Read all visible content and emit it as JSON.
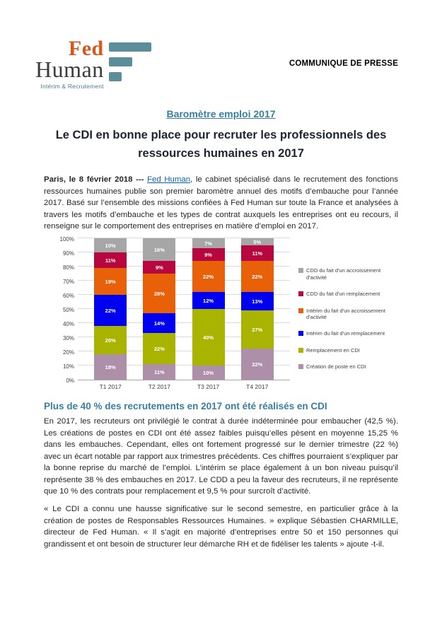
{
  "colors": {
    "accent_teal": "#36809e",
    "link_blue": "#0563c1",
    "logo_orange": "#d9571c",
    "logo_dark": "#3b3b3b",
    "logo_teal": "#5b8e99"
  },
  "header": {
    "logo": {
      "line1": "Fed",
      "line2": "Human",
      "tagline": "Intérim & Recrutement"
    },
    "press_label": "COMMUNIQUE DE PRESSE"
  },
  "titles": {
    "kicker": "Baromètre emploi 2017",
    "main": "Le CDI en bonne place pour recruter les professionnels des ressources humaines en 2017"
  },
  "intro": {
    "dateline": "Paris, le 8 février 2018 --- ",
    "link_text": "Fed Human",
    "rest": ", le cabinet spécialisé dans le recrutement des fonctions ressources humaines publie son premier baromètre annuel des motifs d’embauche pour l’année 2017. Basé sur l’ensemble des missions confiées à Fed Human sur toute la France et analysées à travers les motifs d’embauche et les types de contrat auxquels les entreprises ont eu recours, il renseigne sur le comportement des entreprises en matière d’emploi en 2017."
  },
  "chart_data": {
    "type": "bar",
    "stacked": true,
    "unit": "%",
    "title": "",
    "xlabel": "",
    "ylabel": "",
    "ylim": [
      0,
      100
    ],
    "grid": true,
    "legend_position": "right",
    "categories": [
      "T1 2017",
      "T2 2017",
      "T3 2017",
      "T4 2017"
    ],
    "y_ticks": [
      "0%",
      "10%",
      "20%",
      "30%",
      "40%",
      "50%",
      "60%",
      "70%",
      "80%",
      "90%",
      "100%"
    ],
    "series": [
      {
        "name": "Création de poste en CDI",
        "color": "#ad8fa9",
        "values": [
          18,
          11,
          10,
          22
        ]
      },
      {
        "name": "Remplacement en CDI",
        "color": "#a8b400",
        "values": [
          20,
          22,
          40,
          27
        ]
      },
      {
        "name": "Intérim du fait d'un remplacement",
        "color": "#0000f0",
        "values": [
          22,
          14,
          12,
          13
        ]
      },
      {
        "name": "Intérim du fait d'un accroissement d'activité",
        "color": "#e86008",
        "values": [
          19,
          28,
          22,
          22
        ]
      },
      {
        "name": "CDD du fait d'un remplacement",
        "color": "#b8063f",
        "values": [
          11,
          9,
          9,
          11
        ]
      },
      {
        "name": "CDD du fait d'un accroissement d'activité",
        "color": "#a6a6a6",
        "values": [
          10,
          16,
          7,
          5
        ]
      }
    ]
  },
  "section": {
    "heading": "Plus de 40 % des recrutements en 2017 ont été réalisés en CDI",
    "para1": "En 2017, les recruteurs ont privilégié le contrat à durée indéterminée pour embaucher (42,5 %). Les créations de postes en CDI ont été assez faibles puisqu’elles pèsent en moyenne 15,25 % dans les embauches. Cependant, elles ont fortement progressé sur le dernier trimestre (22 %) avec un écart notable par rapport aux trimestres précédents. Ces chiffres pourraient s’expliquer par la bonne reprise du marché de l’emploi.  L’intérim se place également à un bon niveau puisqu’il représente 38 % des embauches en 2017. Le CDD a peu la faveur des recruteurs, il ne représente que 10 % des contrats pour remplacement et 9,5 % pour surcroît d’activité.",
    "para2": "« Le CDI a connu une hausse significative sur le second semestre, en particulier grâce à la création de postes de Responsables Ressources Humaines. » explique Sébastien CHARMILLE, directeur de Fed Human. « Il s’agit en majorité d’entreprises entre 50 et 150 personnes qui grandissent et ont besoin de structurer leur démarche RH et de fidéliser les talents » ajoute -t-il."
  }
}
